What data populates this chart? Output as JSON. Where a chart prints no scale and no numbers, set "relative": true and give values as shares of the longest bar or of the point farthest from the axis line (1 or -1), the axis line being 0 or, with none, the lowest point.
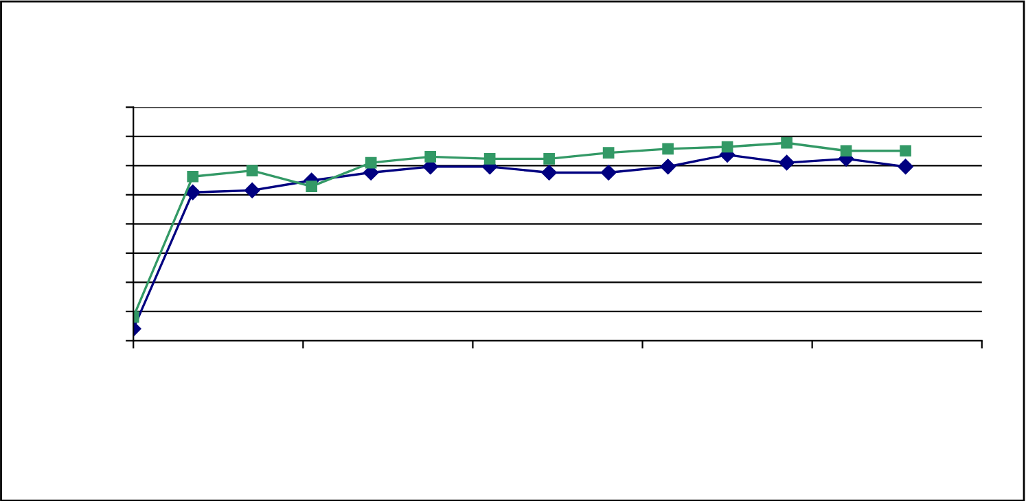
{
  "chart_data": {
    "type": "line",
    "relative": true,
    "grid": "y",
    "categories": [
      null,
      null,
      null,
      null,
      null,
      null,
      null,
      null,
      null,
      null,
      null,
      null,
      null,
      null
    ],
    "series": [
      {
        "color": "#000080",
        "marker": "diamond",
        "values": [
          0.06,
          0.75,
          0.76,
          0.81,
          0.85,
          0.88,
          0.88,
          0.85,
          0.85,
          0.88,
          0.94,
          0.9,
          0.92,
          0.88
        ]
      },
      {
        "color": "#339966",
        "marker": "square",
        "values": [
          0.12,
          0.83,
          0.86,
          0.78,
          0.9,
          0.93,
          0.92,
          0.92,
          0.95,
          0.97,
          0.98,
          1.0,
          0.96,
          0.96
        ]
      }
    ]
  }
}
